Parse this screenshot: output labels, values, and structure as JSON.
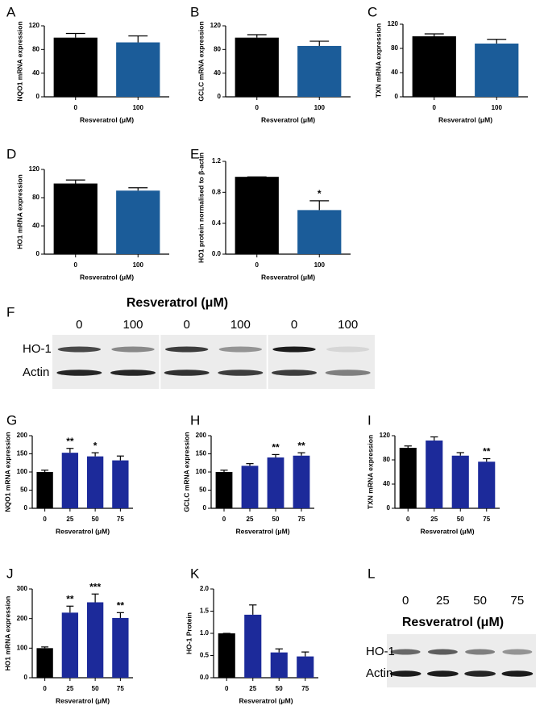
{
  "chart_data": [
    {
      "type": "bar",
      "panel": "A",
      "ylabel": "NQO1 mRNA expression",
      "xlabel": "Resveratrol (μM)",
      "categories": [
        "0",
        "100"
      ],
      "values": [
        100,
        92
      ],
      "errors": [
        7,
        11
      ],
      "colors": [
        "#000000",
        "#1b5c99"
      ],
      "ylim": [
        0,
        120
      ],
      "yticks": [
        0,
        40,
        80,
        120
      ]
    },
    {
      "type": "bar",
      "panel": "B",
      "ylabel": "GCLC mRNA expression",
      "xlabel": "Resveratrol (μM)",
      "categories": [
        "0",
        "100"
      ],
      "values": [
        100,
        86
      ],
      "errors": [
        5,
        8
      ],
      "colors": [
        "#000000",
        "#1b5c99"
      ],
      "ylim": [
        0,
        120
      ],
      "yticks": [
        0,
        40,
        80,
        120
      ]
    },
    {
      "type": "bar",
      "panel": "C",
      "ylabel": "TXN mRNA expression",
      "xlabel": "Resveratrol (μM)",
      "categories": [
        "0",
        "100"
      ],
      "values": [
        100,
        88
      ],
      "errors": [
        4,
        7
      ],
      "colors": [
        "#000000",
        "#1b5c99"
      ],
      "ylim": [
        0,
        120
      ],
      "yticks": [
        0,
        40,
        80,
        120
      ]
    },
    {
      "type": "bar",
      "panel": "D",
      "ylabel": "HO1 mRNA expression",
      "xlabel": "Resveratrol (μM)",
      "categories": [
        "0",
        "100"
      ],
      "values": [
        100,
        90
      ],
      "errors": [
        5,
        4
      ],
      "colors": [
        "#000000",
        "#1b5c99"
      ],
      "ylim": [
        0,
        120
      ],
      "yticks": [
        0,
        40,
        80,
        120
      ]
    },
    {
      "type": "bar",
      "panel": "E",
      "ylabel": "HO1 protein normalised to β-actin",
      "xlabel": "Resveratrol (μM)",
      "categories": [
        "0",
        "100"
      ],
      "values": [
        1.0,
        0.57
      ],
      "errors": [
        0,
        0.12
      ],
      "significance": [
        null,
        "*"
      ],
      "colors": [
        "#000000",
        "#1b5c99"
      ],
      "ylim": [
        0,
        1.2
      ],
      "yticks": [
        {
          "value": 0,
          "label": "0.0"
        },
        0.4,
        0.8,
        1.2
      ]
    },
    {
      "type": "bar",
      "panel": "G",
      "ylabel": "NQO1 mRNA expression",
      "xlabel": "Resveratrol (μM)",
      "categories": [
        "0",
        "25",
        "50",
        "75"
      ],
      "values": [
        100,
        153,
        143,
        132
      ],
      "errors": [
        5,
        12,
        10,
        12
      ],
      "significance": [
        null,
        "**",
        "*",
        null
      ],
      "colors": [
        "#000000",
        "#1c2a9a",
        "#1c2a9a",
        "#1c2a9a"
      ],
      "ylim": [
        0,
        200
      ],
      "yticks": [
        0,
        50,
        100,
        150,
        200
      ]
    },
    {
      "type": "bar",
      "panel": "H",
      "ylabel": "GCLC mRNA expression",
      "xlabel": "Resveratrol (μM)",
      "categories": [
        "0",
        "25",
        "50",
        "75"
      ],
      "values": [
        100,
        117,
        140,
        145
      ],
      "errors": [
        5,
        6,
        8,
        8
      ],
      "significance": [
        null,
        null,
        "**",
        "**"
      ],
      "colors": [
        "#000000",
        "#1c2a9a",
        "#1c2a9a",
        "#1c2a9a"
      ],
      "ylim": [
        0,
        200
      ],
      "yticks": [
        0,
        50,
        100,
        150,
        200
      ]
    },
    {
      "type": "bar",
      "panel": "I",
      "ylabel": "TXN mRNA expression",
      "xlabel": "Resveratrol (μM)",
      "categories": [
        "0",
        "25",
        "50",
        "75"
      ],
      "values": [
        100,
        112,
        87,
        77
      ],
      "errors": [
        3,
        6,
        5,
        5
      ],
      "significance": [
        null,
        null,
        null,
        "**"
      ],
      "colors": [
        "#000000",
        "#1c2a9a",
        "#1c2a9a",
        "#1c2a9a"
      ],
      "ylim": [
        0,
        120
      ],
      "yticks": [
        0,
        40,
        80,
        120
      ]
    },
    {
      "type": "bar",
      "panel": "J",
      "ylabel": "HO1 mRNA expression",
      "xlabel": "Resveratrol (μM)",
      "categories": [
        "0",
        "25",
        "50",
        "75"
      ],
      "values": [
        100,
        220,
        255,
        202
      ],
      "errors": [
        4,
        22,
        28,
        18
      ],
      "significance": [
        null,
        "**",
        "***",
        "**"
      ],
      "colors": [
        "#000000",
        "#1c2a9a",
        "#1c2a9a",
        "#1c2a9a"
      ],
      "ylim": [
        0,
        300
      ],
      "yticks": [
        0,
        100,
        200,
        300
      ]
    },
    {
      "type": "bar",
      "panel": "K",
      "ylabel": "HO-1 Protein",
      "xlabel": "Resveratrol (μM)",
      "categories": [
        "0",
        "25",
        "50",
        "75"
      ],
      "values": [
        1.0,
        1.42,
        0.57,
        0.48
      ],
      "errors": [
        0,
        0.22,
        0.08,
        0.1
      ],
      "colors": [
        "#000000",
        "#1c2a9a",
        "#1c2a9a",
        "#1c2a9a"
      ],
      "ylim": [
        0,
        2.0
      ],
      "yticks": [
        {
          "value": 0,
          "label": "0.0"
        },
        0.5,
        {
          "value": 1,
          "label": "1.0"
        },
        1.5,
        {
          "value": 2,
          "label": "2.0"
        }
      ]
    }
  ],
  "blots": [
    {
      "panel": "F",
      "title": "Resveratrol (μM)",
      "lanes": [
        "0",
        "100",
        "0",
        "100",
        "0",
        "100"
      ],
      "rows": [
        "HO-1",
        "Actin"
      ]
    },
    {
      "panel": "L",
      "title": "Resveratrol (μM)",
      "lanes": [
        "0",
        "25",
        "50",
        "75"
      ],
      "rows": [
        "HO-1",
        "Actin"
      ]
    }
  ]
}
